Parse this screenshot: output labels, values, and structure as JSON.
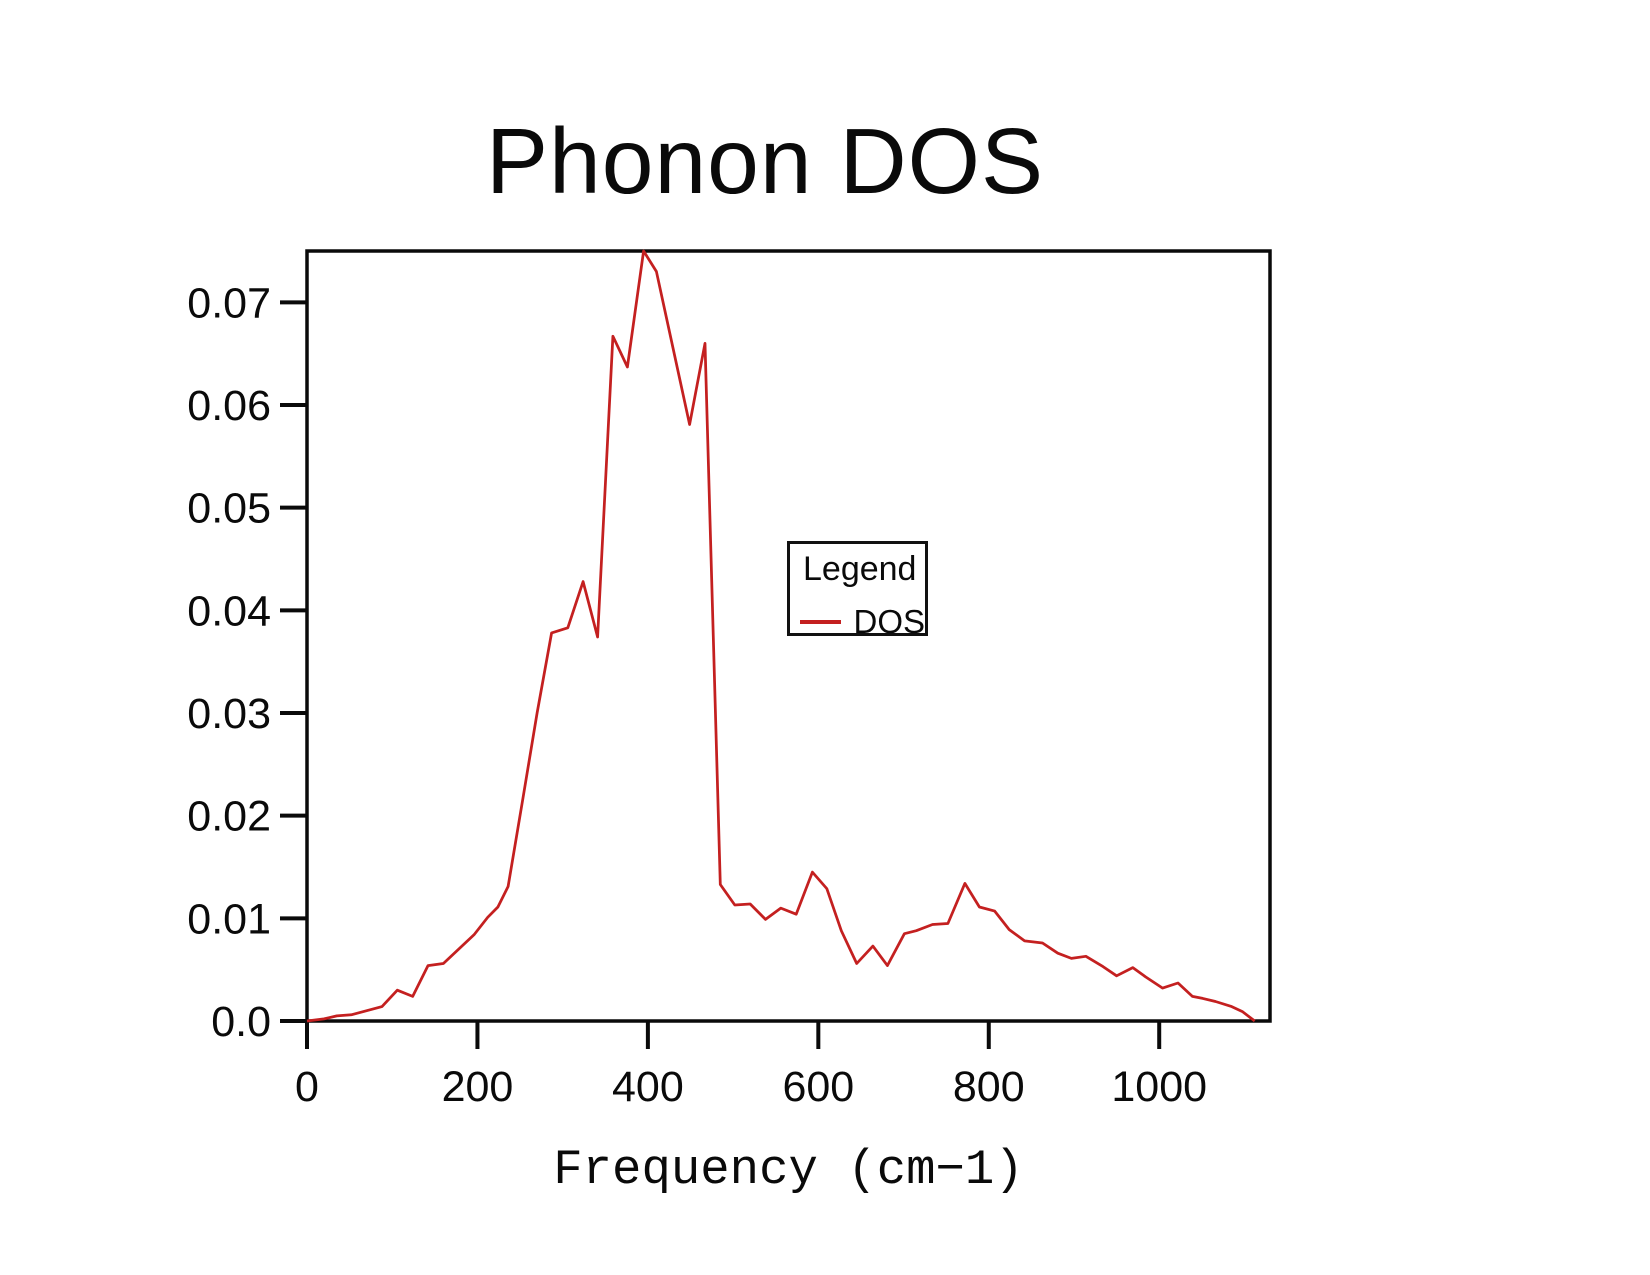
{
  "page": {
    "title": "Phonon DOS"
  },
  "chart_data": {
    "type": "line",
    "title": "Phonon DOS",
    "xlabel": "Frequency (cm−1)",
    "ylabel": "",
    "xlim": [
      0,
      1130
    ],
    "ylim": [
      0,
      0.075
    ],
    "grid": false,
    "x_ticks": [
      0,
      200,
      400,
      600,
      800,
      1000
    ],
    "y_ticks": [
      0,
      0.01,
      0.02,
      0.03,
      0.04,
      0.05,
      0.06,
      0.07
    ],
    "y_tick_labels": [
      "0.0",
      "0.01",
      "0.02",
      "0.03",
      "0.04",
      "0.05",
      "0.06",
      "0.07"
    ],
    "legend": {
      "title": "Legend",
      "position": "inside-center",
      "entries": [
        {
          "label": "DOS",
          "color": "#c42020"
        }
      ]
    },
    "series": [
      {
        "name": "DOS",
        "color": "#c42020",
        "points": [
          [
            0,
            0.0
          ],
          [
            20,
            0.0002
          ],
          [
            35,
            0.0005
          ],
          [
            52,
            0.0006
          ],
          [
            70,
            0.001
          ],
          [
            88,
            0.0014
          ],
          [
            106,
            0.003
          ],
          [
            124,
            0.0024
          ],
          [
            142,
            0.0054
          ],
          [
            160,
            0.0056
          ],
          [
            178,
            0.007
          ],
          [
            196,
            0.0084
          ],
          [
            212,
            0.0101
          ],
          [
            224,
            0.0111
          ],
          [
            236,
            0.0131
          ],
          [
            253,
            0.0215
          ],
          [
            270,
            0.03
          ],
          [
            287,
            0.0378
          ],
          [
            306,
            0.0383
          ],
          [
            324,
            0.0428
          ],
          [
            341,
            0.0374
          ],
          [
            359,
            0.0667
          ],
          [
            376,
            0.0637
          ],
          [
            395,
            0.075
          ],
          [
            410,
            0.073
          ],
          [
            427,
            0.0665
          ],
          [
            449,
            0.0581
          ],
          [
            467,
            0.066
          ],
          [
            485,
            0.0133
          ],
          [
            502,
            0.0113
          ],
          [
            520,
            0.0114
          ],
          [
            538,
            0.0099
          ],
          [
            556,
            0.011
          ],
          [
            574,
            0.0104
          ],
          [
            593,
            0.0145
          ],
          [
            610,
            0.0129
          ],
          [
            627,
            0.0088
          ],
          [
            645,
            0.0056
          ],
          [
            664,
            0.0073
          ],
          [
            681,
            0.0054
          ],
          [
            701,
            0.0085
          ],
          [
            715,
            0.0088
          ],
          [
            734,
            0.0094
          ],
          [
            752,
            0.0095
          ],
          [
            772,
            0.0134
          ],
          [
            789,
            0.0111
          ],
          [
            807,
            0.0107
          ],
          [
            824,
            0.0089
          ],
          [
            842,
            0.0078
          ],
          [
            863,
            0.0076
          ],
          [
            881,
            0.0066
          ],
          [
            897,
            0.0061
          ],
          [
            914,
            0.0063
          ],
          [
            934,
            0.0053
          ],
          [
            950,
            0.0044
          ],
          [
            969,
            0.0052
          ],
          [
            984,
            0.0043
          ],
          [
            1004,
            0.0032
          ],
          [
            1022,
            0.0037
          ],
          [
            1039,
            0.0024
          ],
          [
            1051,
            0.0022
          ],
          [
            1066,
            0.0019
          ],
          [
            1085,
            0.0014
          ],
          [
            1098,
            0.0009
          ],
          [
            1112,
            0.0
          ]
        ]
      }
    ]
  }
}
